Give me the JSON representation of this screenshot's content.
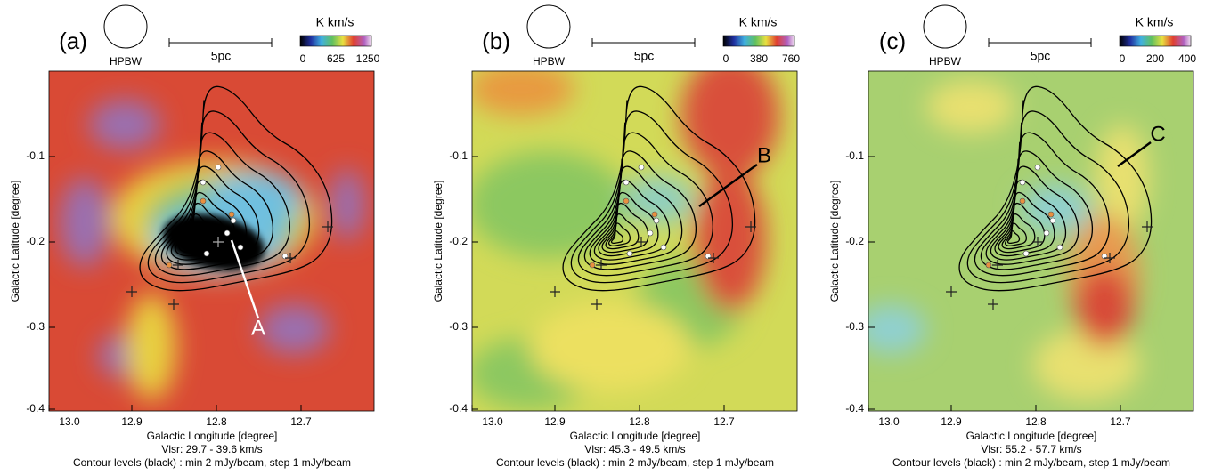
{
  "panels": [
    {
      "label": "(a)",
      "beam": "HPBW",
      "scale": "5pc",
      "colorbar_unit": "K km/s",
      "colorbar_ticks": [
        "0",
        "625",
        "1250"
      ],
      "y_title": "Galactic Latitude [degree]",
      "x_title": "Galactic Longitude [degree]",
      "x_ticks": [
        "13.0",
        "12.9",
        "12.8",
        "12.7"
      ],
      "y_ticks": [
        "-0.1",
        "-0.2",
        "-0.3",
        "-0.4"
      ],
      "velocity": "Vlsr: 29.7 - 39.6 km/s",
      "contours": "Contour levels (black) : min 2 mJy/beam, step 1 mJy/beam",
      "annotation": "A"
    },
    {
      "label": "(b)",
      "beam": "HPBW",
      "scale": "5pc",
      "colorbar_unit": "K km/s",
      "colorbar_ticks": [
        "0",
        "380",
        "760"
      ],
      "y_title": "Galactic Latitude [degree]",
      "x_title": "Galactic Longitude [degree]",
      "x_ticks": [
        "13.0",
        "12.9",
        "12.8",
        "12.7"
      ],
      "y_ticks": [
        "-0.1",
        "-0.2",
        "-0.3",
        "-0.4"
      ],
      "velocity": "Vlsr: 45.3 - 49.5 km/s",
      "contours": "Contour levels (black) : min 2 mJy/beam, step 1 mJy/beam",
      "annotation": "B"
    },
    {
      "label": "(c)",
      "beam": "HPBW",
      "scale": "5pc",
      "colorbar_unit": "K km/s",
      "colorbar_ticks": [
        "0",
        "200",
        "400"
      ],
      "y_title": "Galactic Latitude [degree]",
      "x_title": "Galactic Longitude [degree]",
      "x_ticks": [
        "13.0",
        "12.9",
        "12.8",
        "12.7"
      ],
      "y_ticks": [
        "-0.1",
        "-0.2",
        "-0.3",
        "-0.4"
      ],
      "velocity": "Vlsr: 55.2 - 57.7 km/s",
      "contours": "Contour levels (black) : min 2 mJy/beam, step 1 mJy/beam",
      "annotation": "C"
    }
  ]
}
